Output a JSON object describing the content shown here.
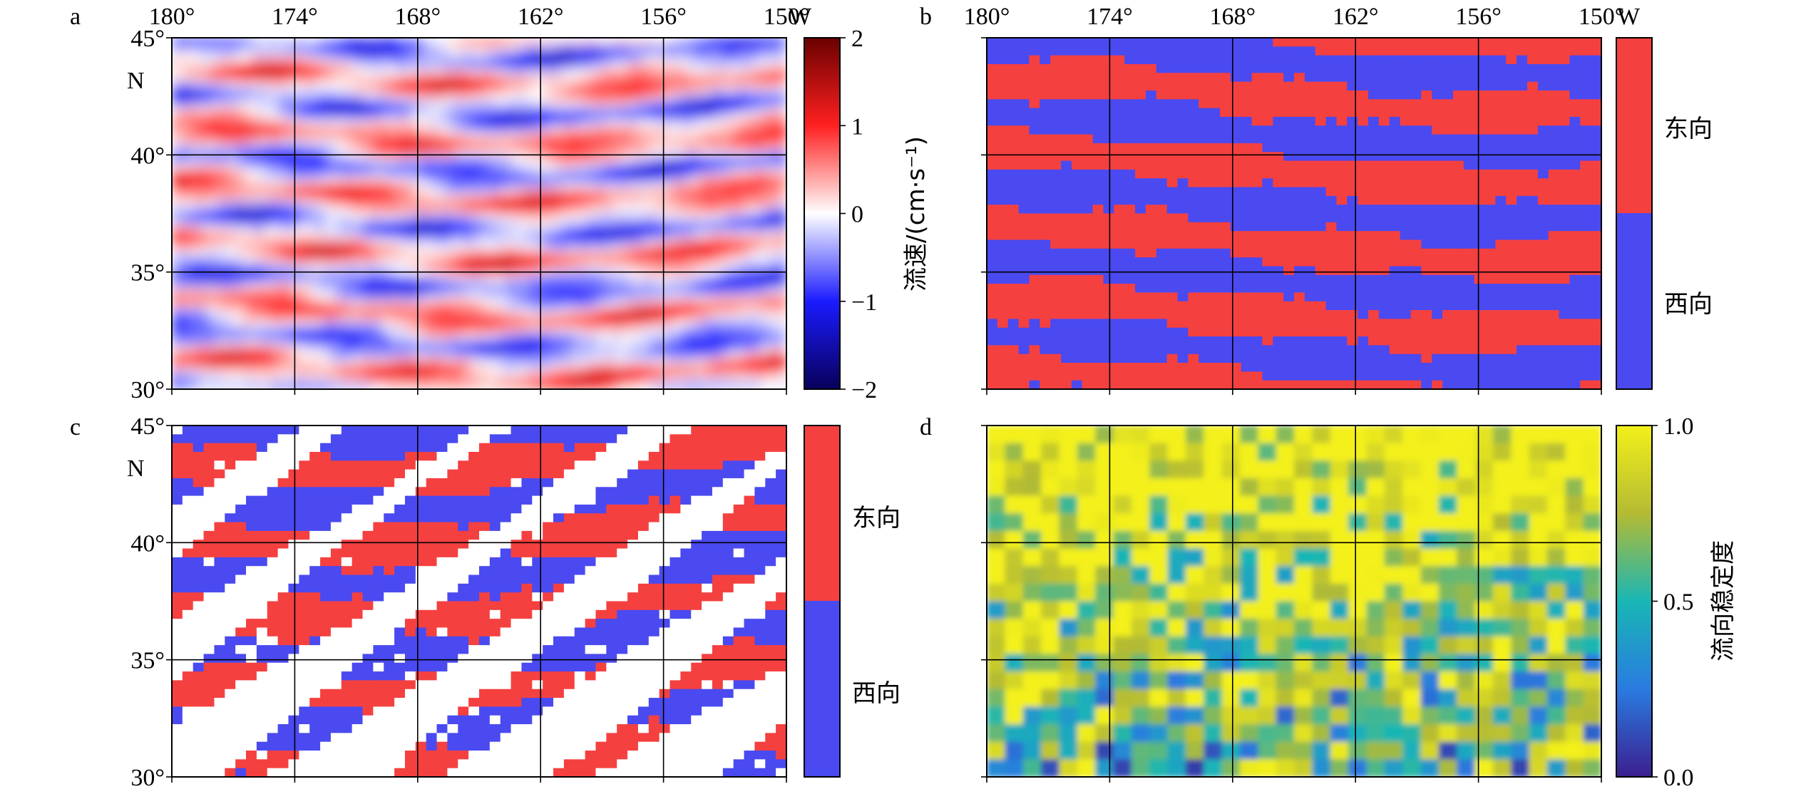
{
  "chart_data": [
    {
      "id": "a",
      "type": "heatmap",
      "panel_label": "a",
      "x_ticks": [
        "180°",
        "174°",
        "168°",
        "162°",
        "156°",
        "150°"
      ],
      "x_unit": "W",
      "y_ticks": [
        "45°",
        "40°",
        "35°",
        "30°"
      ],
      "y_unit": "N",
      "x_range": [
        "180°",
        "150° W"
      ],
      "y_range": [
        "30°",
        "45° N"
      ],
      "grid": true,
      "colorbar": {
        "label": "流速/(cm·s⁻¹)",
        "ticks": [
          "2",
          "1",
          "0",
          "−1",
          "−2"
        ],
        "range": [
          -2,
          2
        ],
        "colors": [
          "#08005a",
          "#1b1bff",
          "#ffffff",
          "#ff2020",
          "#6b0000"
        ]
      }
    },
    {
      "id": "b",
      "type": "heatmap",
      "panel_label": "b",
      "x_ticks": [
        "180°",
        "174°",
        "168°",
        "162°",
        "156°",
        "150°"
      ],
      "x_unit": "W",
      "grid": true,
      "colorbar": {
        "categories": [
          "东向",
          "西向"
        ],
        "colors": [
          "#f54040",
          "#4a4af0"
        ]
      }
    },
    {
      "id": "c",
      "type": "heatmap",
      "panel_label": "c",
      "y_ticks": [
        "45°",
        "40°",
        "35°",
        "30°"
      ],
      "y_unit": "N",
      "grid": true,
      "colorbar": {
        "categories": [
          "东向",
          "西向"
        ],
        "colors": [
          "#f54040",
          "#4a4af0"
        ]
      }
    },
    {
      "id": "d",
      "type": "heatmap",
      "panel_label": "d",
      "grid": true,
      "colorbar": {
        "label": "流向稳定度",
        "ticks": [
          "1.0",
          "0.5",
          "0.0"
        ],
        "range": [
          0,
          1
        ],
        "colors": [
          "#3b1f8f",
          "#2a7be0",
          "#19b6b5",
          "#b4bb33",
          "#f3f01a"
        ]
      }
    }
  ]
}
